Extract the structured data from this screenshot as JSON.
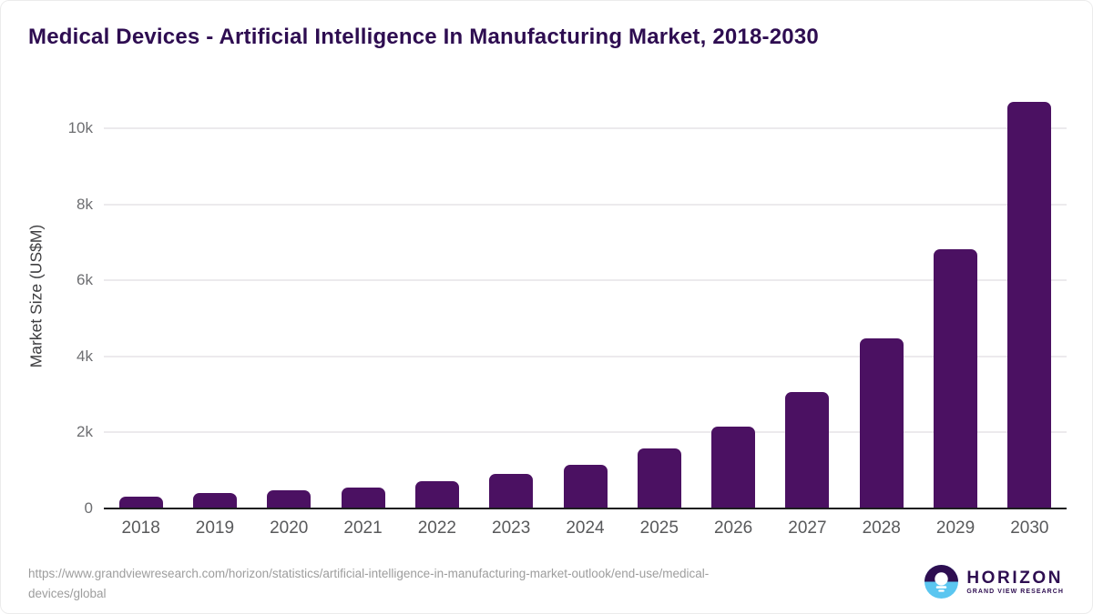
{
  "title": "Medical Devices - Artificial Intelligence In Manufacturing Market, 2018-2030",
  "chart_data": {
    "type": "bar",
    "title": "Medical Devices - Artificial Intelligence In Manufacturing Market, 2018-2030",
    "categories": [
      "2018",
      "2019",
      "2020",
      "2021",
      "2022",
      "2023",
      "2024",
      "2025",
      "2026",
      "2027",
      "2028",
      "2029",
      "2030"
    ],
    "values": [
      310,
      405,
      480,
      555,
      715,
      905,
      1160,
      1580,
      2150,
      3060,
      4470,
      6820,
      10705
    ],
    "xlabel": "",
    "ylabel": "Market Size (US$M)",
    "ylim": [
      0,
      11200
    ],
    "yticks": [
      0,
      2000,
      4000,
      6000,
      8000,
      10000
    ],
    "ytick_labels": [
      "0",
      "2k",
      "4k",
      "6k",
      "8k",
      "10k"
    ],
    "grid": true,
    "legend": "none",
    "bar_color": "#4B1162"
  },
  "footer": {
    "source_lines": [
      "https://www.grandviewresearch.com/horizon/statistics/artificial-intelligence-in-manufacturing-market-outlook/end-use/medical-",
      "devices/global"
    ]
  },
  "logo": {
    "brand": "HORIZON",
    "sub_brand": "GRAND VIEW RESEARCH"
  },
  "colors": {
    "title": "#2E0D51",
    "bar": "#4B1162",
    "gridline": "#eceaed",
    "axis_line": "#1d1d1f",
    "x_tick": "#58595b",
    "y_tick": "#6d6e71",
    "y_axis_title": "#3f3f41",
    "source_text": "#9d9d9d",
    "logo_purple": "#2E0E51",
    "logo_blue": "#5BC6F0"
  }
}
